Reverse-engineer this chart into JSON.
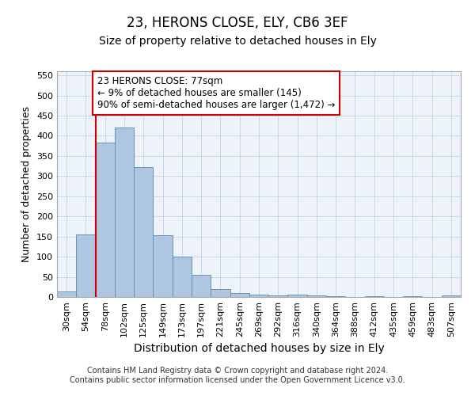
{
  "title": "23, HERONS CLOSE, ELY, CB6 3EF",
  "subtitle": "Size of property relative to detached houses in Ely",
  "xlabel": "Distribution of detached houses by size in Ely",
  "ylabel": "Number of detached properties",
  "categories": [
    "30sqm",
    "54sqm",
    "78sqm",
    "102sqm",
    "125sqm",
    "149sqm",
    "173sqm",
    "197sqm",
    "221sqm",
    "245sqm",
    "269sqm",
    "292sqm",
    "316sqm",
    "340sqm",
    "364sqm",
    "388sqm",
    "412sqm",
    "435sqm",
    "459sqm",
    "483sqm",
    "507sqm"
  ],
  "bar_values": [
    13,
    155,
    383,
    420,
    322,
    153,
    100,
    55,
    19,
    10,
    5,
    3,
    5,
    3,
    2,
    0,
    2,
    0,
    2,
    0,
    3
  ],
  "bar_color": "#aec6df",
  "bar_edge_color": "#5a8ab0",
  "ylim": [
    0,
    560
  ],
  "yticks": [
    0,
    50,
    100,
    150,
    200,
    250,
    300,
    350,
    400,
    450,
    500,
    550
  ],
  "annotation_line1": "23 HERONS CLOSE: 77sqm",
  "annotation_line2": "← 9% of detached houses are smaller (145)",
  "annotation_line3": "90% of semi-detached houses are larger (1,472) →",
  "annotation_box_color": "#cc0000",
  "property_line_color": "#cc0000",
  "property_line_bin_index": 2,
  "footer_text": "Contains HM Land Registry data © Crown copyright and database right 2024.\nContains public sector information licensed under the Open Government Licence v3.0.",
  "title_fontsize": 12,
  "subtitle_fontsize": 10,
  "xlabel_fontsize": 10,
  "ylabel_fontsize": 9,
  "tick_fontsize": 8,
  "annotation_fontsize": 8.5,
  "footer_fontsize": 7
}
